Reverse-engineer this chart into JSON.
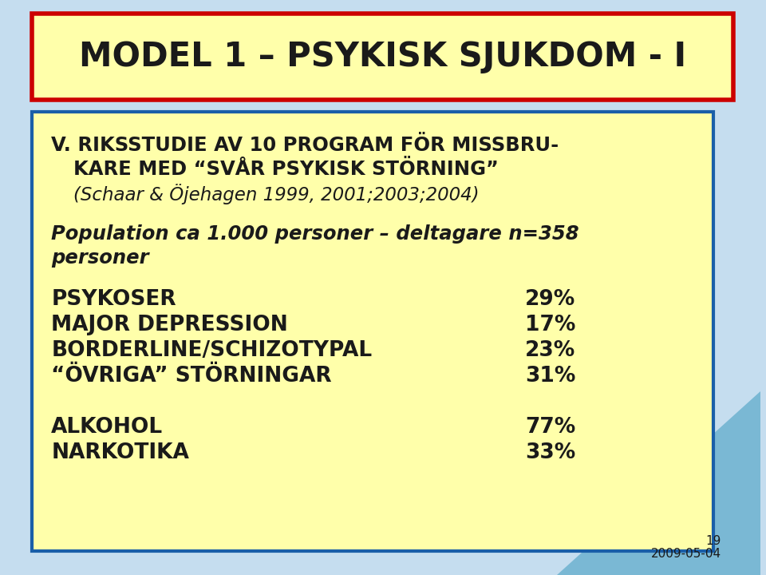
{
  "title": "MODEL 1 – PSYKISK SJUKDOM - I",
  "title_color": "#1a1a1a",
  "title_box_fill": "#ffffaa",
  "title_box_edge": "#cc0000",
  "content_box_fill": "#ffffaa",
  "content_box_edge": "#1a5fa8",
  "bg_color": "#c5ddef",
  "line1": "V. RIKSSTUDIE AV 10 PROGRAM FÖR MISSBRU-",
  "line2": "KARE MED “SVÅR PSYKISK STÖRNING”",
  "line3": "(Schaar & Öjehagen 1999, 2001;2003;2004)",
  "line4": "Population ca 1.000 personer – deltagare n=358",
  "line5": "personer",
  "rows": [
    [
      "PSYKOSER",
      "29%"
    ],
    [
      "MAJOR DEPRESSION",
      "17%"
    ],
    [
      "BORDERLINE/SCHIZOTYPAL",
      "23%"
    ],
    [
      "“ÖVRIGA” STÖRNINGAR",
      "31%"
    ]
  ],
  "rows2": [
    [
      "ALKOHOL",
      "77%"
    ],
    [
      "NARKOTIKA",
      "33%"
    ]
  ],
  "footnote_num": "19",
  "footnote_date": "2009-05-04",
  "dark_text": "#1a1a1a",
  "tri_color": "#7ab8d4"
}
